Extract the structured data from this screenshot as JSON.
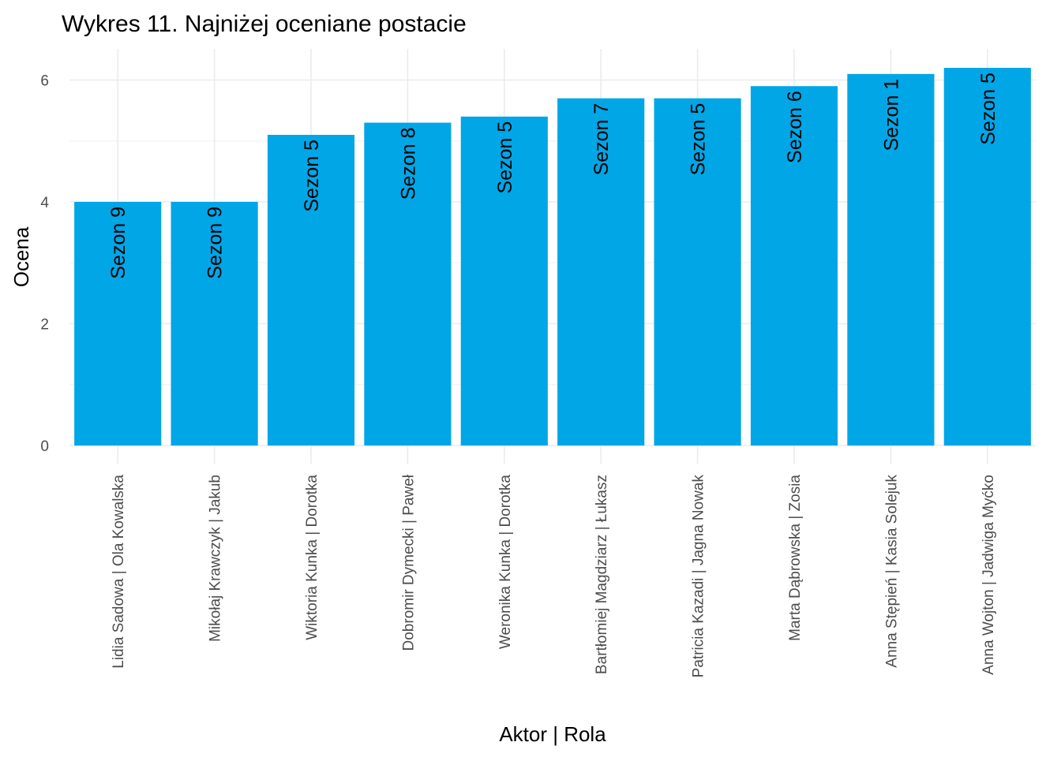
{
  "chart_data": {
    "type": "bar",
    "title": "Wykres 11. Najniżej oceniane postacie",
    "xlabel": "Aktor | Rola",
    "ylabel": "Ocena",
    "ylim": [
      0,
      6.3
    ],
    "yticks": [
      0,
      2,
      4,
      6
    ],
    "grid": true,
    "bar_color": "#00a6e6",
    "categories": [
      "Lidia Sadowa | Ola Kowalska",
      "Mikołaj Krawczyk | Jakub",
      "Wiktoria Kunka | Dorotka",
      "Dobromir Dymecki | Paweł",
      "Weronika Kunka | Dorotka",
      "Bartłomiej Magdziarz | Łukasz",
      "Patricia Kazadi | Jagna Nowak",
      "Marta Dąbrowska | Zosia",
      "Anna Stępień | Kasia Solejuk",
      "Anna Wojton | Jadwiga Myćko"
    ],
    "values": [
      4.0,
      4.0,
      5.1,
      5.3,
      5.4,
      5.7,
      5.7,
      5.9,
      6.1,
      6.2
    ],
    "bar_labels": [
      "Sezon 9",
      "Sezon 9",
      "Sezon 5",
      "Sezon 8",
      "Sezon 5",
      "Sezon 7",
      "Sezon 5",
      "Sezon 6",
      "Sezon 1",
      "Sezon 5"
    ]
  }
}
